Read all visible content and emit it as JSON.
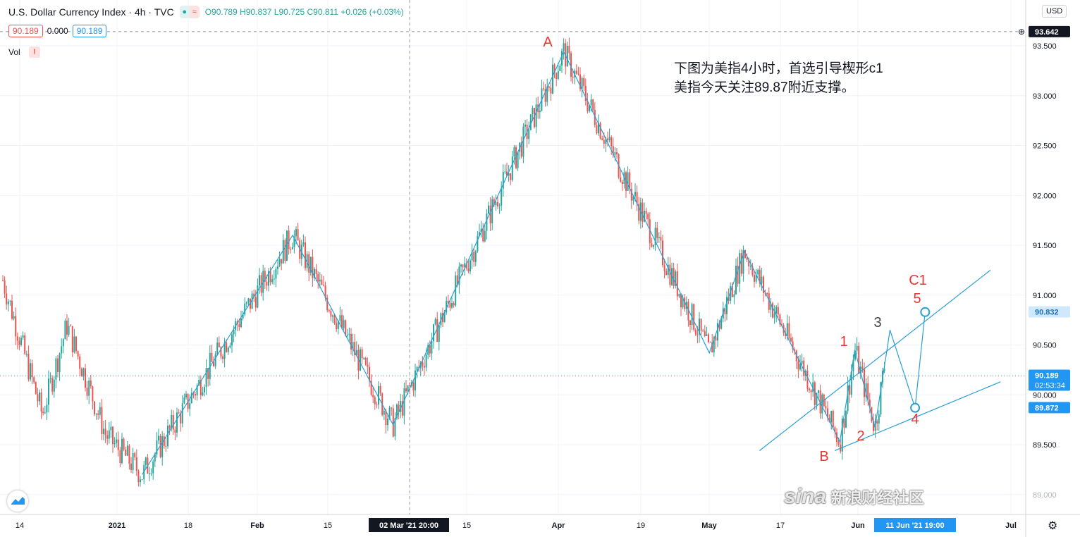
{
  "header": {
    "symbol": "U.S. Dollar Currency Index · 4h · TVC",
    "ohlc": "O90.789  H90.837  L90.725  C90.811  +0.026 (+0.03%)"
  },
  "indicator_row": {
    "price_left": "90.189",
    "spread": "0.000",
    "price_right": "90.189"
  },
  "volume_label": "Vol",
  "warning_glyph": "!",
  "currency_button": "USD",
  "annotation": {
    "line1": "下图为美指4小时，首选引导楔形c1",
    "line2": "美指今天关注89.87附近支撑。"
  },
  "watermark": {
    "sina": "sina",
    "text": "新浪财经社区"
  },
  "colors": {
    "up": "#26a69a",
    "down": "#ef5350",
    "trendline": "#2a9fd6",
    "wave_label": "#e53935",
    "axis_text": "#131722"
  },
  "chart_data": {
    "type": "candlestick",
    "title": "U.S. Dollar Currency Index · 4h · TVC",
    "y_axis": {
      "ticks": [
        89.5,
        90.0,
        90.5,
        91.0,
        91.5,
        92.0,
        92.5,
        93.0,
        93.5
      ],
      "tick_labels": [
        "89.500",
        "90.000",
        "90.500",
        "91.000",
        "91.500",
        "92.000",
        "92.500",
        "93.000",
        "93.500"
      ],
      "partial_bottom_label": "89.000",
      "ylim": [
        88.9,
        93.75
      ],
      "grid": true
    },
    "x_axis": {
      "tick_labels": [
        "14",
        "2021",
        "18",
        "Feb",
        "15",
        "02 Mar '21",
        "20:00",
        "15",
        "Apr",
        "19",
        "May",
        "17",
        "Jun",
        "11 Jun '21",
        "19:00",
        "Jul"
      ],
      "crosshair_label": "02 Mar '21  20:00",
      "cursor_label": "11 Jun '21  19:00"
    },
    "price_tags": [
      {
        "label": "93.642",
        "value": 93.642,
        "style": "crosshair"
      },
      {
        "label": "90.832",
        "value": 90.832,
        "style": "light"
      },
      {
        "label": "90.189",
        "value": 90.189,
        "style": "last",
        "countdown": "02:53:34"
      },
      {
        "label": "89.872",
        "value": 89.872,
        "style": "solid"
      }
    ],
    "last_price": 90.189,
    "wave_labels": [
      "A",
      "B",
      "1",
      "2",
      "3",
      "4",
      "5",
      "C1"
    ],
    "zigzag_points": [
      {
        "date": "2021-01-06",
        "value": 89.2
      },
      {
        "date": "2021-02-05",
        "value": 91.6
      },
      {
        "date": "2021-02-25",
        "value": 89.7
      },
      {
        "date": "2021-03-31",
        "value": 93.44
      },
      {
        "date": "2021-04-29",
        "value": 90.42
      },
      {
        "date": "2021-05-06",
        "value": 91.44
      },
      {
        "date": "2021-05-25",
        "value": 89.53
      },
      {
        "date": "2021-05-28",
        "value": 90.45
      },
      {
        "date": "2021-06-01",
        "value": 89.67
      },
      {
        "date": "2021-06-04",
        "value": 90.65
      },
      {
        "date": "2021-06-09",
        "value": 89.87
      },
      {
        "date": "2021-06-11",
        "value": 90.83
      }
    ],
    "wedge_upper": [
      {
        "date": "2021-05-09",
        "value": 89.44
      },
      {
        "date": "2021-06-24",
        "value": 91.25
      }
    ],
    "wedge_lower": [
      {
        "date": "2021-05-24",
        "value": 89.44
      },
      {
        "date": "2021-06-26",
        "value": 90.13
      }
    ],
    "series_summary": "4h OHLC candles, Jan–Jun 2021; lows near 89.2 (early Jan), highs near 93.44 (end of Mar)"
  }
}
